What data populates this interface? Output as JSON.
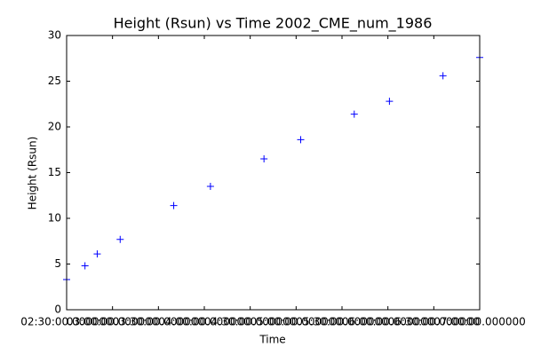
{
  "chart_data": {
    "type": "scatter",
    "title": "Height (Rsun) vs Time 2002_CME_num_1986",
    "x_label": "Time",
    "y_label": "Height (Rsun)",
    "x": [
      "02:30:00",
      "02:42:00",
      "02:50:00",
      "03:05:00",
      "03:40:00",
      "04:04:00",
      "04:39:00",
      "05:03:00",
      "05:38:00",
      "06:01:00",
      "06:36:00",
      "07:00:00"
    ],
    "series": [
      {
        "color": "#0000ff",
        "values": [
          3.3,
          4.8,
          6.1,
          7.7,
          11.4,
          13.5,
          16.5,
          18.6,
          21.4,
          22.8,
          25.6,
          27.6
        ]
      }
    ],
    "xlim": [
      "02:30:00",
      "07:00:00"
    ],
    "xticks": [
      "02:30:00.000000",
      "03:00:00.000000",
      "03:30:00.000000",
      "04:00:00.000000",
      "04:30:00.000000",
      "05:00:00.000000",
      "05:30:00.000000",
      "06:00:00.000000",
      "06:30:00.000000",
      "07:00:00.000000"
    ],
    "ylim": [
      0,
      30
    ],
    "yticks": [
      0,
      5,
      10,
      15,
      20,
      25,
      30
    ],
    "grid": false
  }
}
